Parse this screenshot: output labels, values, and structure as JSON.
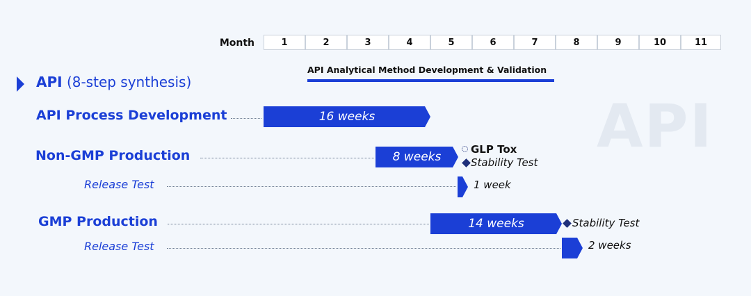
{
  "watermark": "API",
  "header": {
    "month_label": "Month",
    "months": [
      "1",
      "2",
      "3",
      "4",
      "5",
      "6",
      "7",
      "8",
      "9",
      "10",
      "11"
    ]
  },
  "analytical": {
    "title": "API Analytical Method Development & Validation"
  },
  "section": {
    "bold": "API",
    "rest": "(8-step synthesis)"
  },
  "rows": {
    "process": {
      "label": "API Process Development",
      "duration": "16 weeks"
    },
    "nongmp": {
      "label": "Non-GMP Production",
      "duration": "8 weeks",
      "note1": "GLP Tox",
      "note2": "Stability Test"
    },
    "release1": {
      "label": "Release Test",
      "duration": "1 week"
    },
    "gmp": {
      "label": "GMP Production",
      "duration": "14 weeks",
      "note": "Stability Test"
    },
    "release2": {
      "label": "Release Test",
      "duration": "2 weeks"
    }
  },
  "colors": {
    "accent": "#1b3fd6",
    "note_marker": "#1f2f7a"
  }
}
